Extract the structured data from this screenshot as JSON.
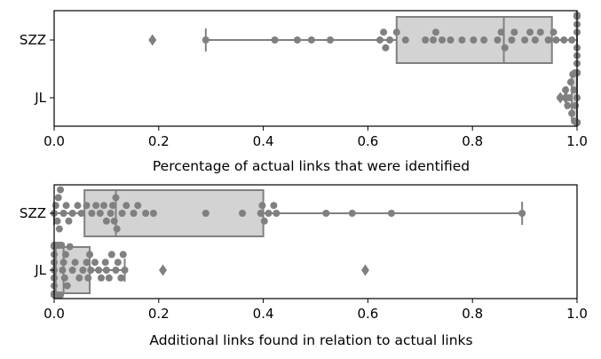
{
  "colors": {
    "box_fill": "#d3d3d3",
    "box_line": "#808080",
    "point": "#808080",
    "axis": "#000000"
  },
  "chart_data": [
    {
      "type": "box-swarm",
      "orientation": "horizontal",
      "xlabel": "Percentage of actual links that were identified",
      "xlim": [
        0.0,
        1.0
      ],
      "xticks": [
        "0.0",
        "0.2",
        "0.4",
        "0.6",
        "0.8",
        "1.0"
      ],
      "grid": false,
      "categories": [
        {
          "name": "SZZ",
          "box": {
            "whisker_low": 0.29,
            "q1": 0.655,
            "median": 0.86,
            "q3": 0.952,
            "whisker_high": 1.0,
            "outliers": [
              0.188
            ]
          },
          "points": [
            0.29,
            0.422,
            0.465,
            0.492,
            0.528,
            0.623,
            0.63,
            0.634,
            0.642,
            0.655,
            0.672,
            0.71,
            0.725,
            0.73,
            0.742,
            0.758,
            0.78,
            0.802,
            0.822,
            0.848,
            0.855,
            0.862,
            0.875,
            0.88,
            0.9,
            0.91,
            0.92,
            0.93,
            0.945,
            0.955,
            0.96,
            0.975,
            0.99,
            1.0,
            1.0,
            1.0,
            1.0,
            1.0,
            1.0,
            1.0
          ]
        },
        {
          "name": "JL",
          "box": {
            "whisker_low": 0.98,
            "q1": 0.99,
            "median": 1.0,
            "q3": 1.0,
            "whisker_high": 1.0,
            "outliers": [
              0.968,
              0.978
            ]
          },
          "points": [
            0.968,
            0.978,
            0.982,
            0.985,
            0.988,
            0.99,
            0.992,
            0.994,
            0.995,
            0.996,
            0.997,
            0.998,
            0.999,
            1.0,
            1.0,
            1.0,
            1.0,
            1.0,
            1.0,
            1.0,
            1.0,
            1.0,
            1.0,
            1.0,
            1.0,
            1.0,
            1.0,
            1.0,
            1.0,
            1.0,
            1.0,
            1.0,
            1.0,
            1.0,
            1.0,
            1.0,
            1.0,
            1.0,
            1.0,
            1.0
          ]
        }
      ]
    },
    {
      "type": "box-swarm",
      "orientation": "horizontal",
      "xlabel": "Additional links found in relation to actual links",
      "xlim": [
        0.0,
        1.0
      ],
      "xticks": [
        "0.0",
        "0.2",
        "0.4",
        "0.6",
        "0.8",
        "1.0"
      ],
      "grid": false,
      "categories": [
        {
          "name": "SZZ",
          "box": {
            "whisker_low": 0.0,
            "q1": 0.058,
            "median": 0.118,
            "q3": 0.4,
            "whisker_high": 0.895,
            "outliers": []
          },
          "points": [
            0.0,
            0.003,
            0.006,
            0.008,
            0.01,
            0.012,
            0.018,
            0.023,
            0.028,
            0.035,
            0.045,
            0.052,
            0.062,
            0.072,
            0.08,
            0.088,
            0.095,
            0.1,
            0.108,
            0.112,
            0.115,
            0.118,
            0.12,
            0.13,
            0.138,
            0.152,
            0.16,
            0.175,
            0.19,
            0.29,
            0.36,
            0.395,
            0.398,
            0.402,
            0.41,
            0.42,
            0.425,
            0.52,
            0.57,
            0.645,
            0.895
          ]
        },
        {
          "name": "JL",
          "box": {
            "whisker_low": 0.0,
            "q1": 0.003,
            "median": 0.018,
            "q3": 0.068,
            "whisker_high": 0.135,
            "outliers": [
              0.208,
              0.595
            ]
          },
          "points": [
            0.0,
            0.0,
            0.0,
            0.0,
            0.0,
            0.0,
            0.0,
            0.0,
            0.0,
            0.001,
            0.002,
            0.003,
            0.004,
            0.006,
            0.008,
            0.01,
            0.012,
            0.014,
            0.016,
            0.018,
            0.02,
            0.022,
            0.025,
            0.03,
            0.035,
            0.04,
            0.048,
            0.055,
            0.062,
            0.065,
            0.068,
            0.07,
            0.078,
            0.085,
            0.09,
            0.098,
            0.1,
            0.105,
            0.11,
            0.118,
            0.122,
            0.128,
            0.132,
            0.135
          ]
        }
      ]
    }
  ]
}
